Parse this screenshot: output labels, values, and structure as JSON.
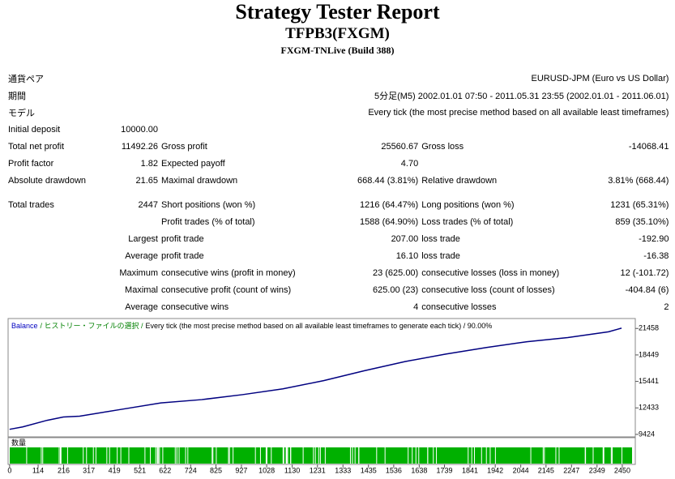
{
  "header": {
    "title": "Strategy Tester Report",
    "subtitle": "TFPB3(FXGM)",
    "server": "FXGM-TNLive (Build 388)"
  },
  "report": {
    "rows": [
      [
        "通貨ペア",
        "EURUSD-JPM (Euro vs US Dollar)"
      ],
      [
        "期間",
        "5分足(M5) 2002.01.01 07:50 - 2011.05.31 23:55 (2002.01.01 - 2011.06.01)"
      ],
      [
        "モデル",
        "Every tick (the most precise method based on all available least timeframes)"
      ],
      [
        "Initial deposit",
        "10000.00"
      ],
      [
        "Total net profit",
        "11492.26",
        "Gross profit",
        "25560.67",
        "Gross loss",
        "-14068.41"
      ],
      [
        "Profit factor",
        "1.82",
        "Expected payoff",
        "4.70"
      ],
      [
        "Absolute drawdown",
        "21.65",
        "Maximal drawdown",
        "668.44 (3.81%)",
        "Relative drawdown",
        "3.81% (668.44)"
      ],
      [
        "Total trades",
        "2447",
        "Short positions (won %)",
        "1216 (64.47%)",
        "Long positions (won %)",
        "1231 (65.31%)"
      ],
      [
        "Profit trades (% of total)",
        "1588 (64.90%)",
        "Loss trades (% of total)",
        "859 (35.10%)"
      ],
      [
        "Largest",
        "profit trade",
        "207.00",
        "loss trade",
        "-192.90"
      ],
      [
        "Average",
        "profit trade",
        "16.10",
        "loss trade",
        "-16.38"
      ],
      [
        "Maximum",
        "consecutive wins (profit in money)",
        "23 (625.00)",
        "consecutive losses (loss in money)",
        "12 (-101.72)"
      ],
      [
        "Maximal",
        "consecutive profit (count of wins)",
        "625.00 (23)",
        "consecutive loss (count of losses)",
        "-404.84 (6)"
      ],
      [
        "Average",
        "consecutive wins",
        "4",
        "consecutive losses",
        "2"
      ]
    ]
  },
  "balance_chart": {
    "type": "line",
    "legend": [
      "Balance",
      "/ ヒストリー・ファイルの選択 /",
      "Every tick (the most precise method based on all available least timeframes to generate each tick) / 90.00%"
    ],
    "volume_label": "数量",
    "series": [
      {
        "name": "Balance",
        "color": "#000080",
        "x": [
          0,
          52,
          150,
          215,
          280,
          442,
          605,
          768,
          931,
          1093,
          1256,
          1419,
          1581,
          1744,
          1907,
          2069,
          2232,
          2395,
          2447
        ],
        "values": [
          10000,
          10270,
          11022,
          11398,
          11492,
          12244,
          12996,
          13372,
          13936,
          14594,
          15534,
          16662,
          17696,
          18542,
          19294,
          19952,
          20422,
          21080,
          21492
        ]
      }
    ],
    "xlim": [
      -6,
      2502
    ],
    "ylim": [
      9142,
      22586
    ],
    "xticks": [
      0,
      114,
      216,
      317,
      419,
      521,
      622,
      724,
      825,
      927,
      1028,
      1130,
      1231,
      1333,
      1435,
      1536,
      1638,
      1739,
      1841,
      1942,
      2044,
      2145,
      2247,
      2349,
      2450
    ],
    "yticks": [
      9424,
      12433,
      15441,
      18449,
      21458
    ]
  }
}
